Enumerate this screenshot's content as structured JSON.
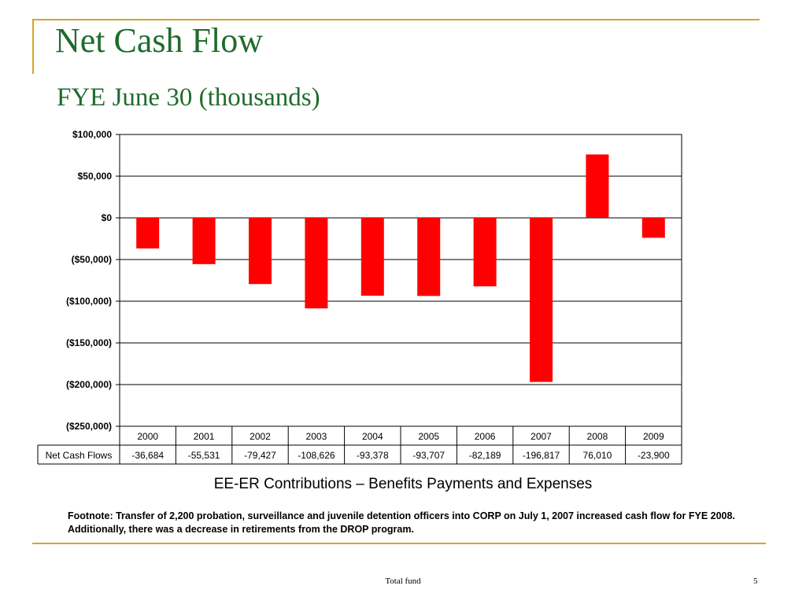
{
  "slide": {
    "title": "Net Cash Flow",
    "subtitle": "FYE June 30 (thousands)",
    "caption": "EE-ER Contributions – Benefits Payments and Expenses",
    "footnote": "Footnote: Transfer of 2,200 probation, surveillance and juvenile detention officers into CORP on July 1, 2007 increased cash flow for FYE 2008.  Additionally, there was a decrease in retirements from the DROP program.",
    "footer": "Total fund",
    "page_number": "5"
  },
  "chart_data": {
    "type": "bar",
    "categories": [
      "2000",
      "2001",
      "2002",
      "2003",
      "2004",
      "2005",
      "2006",
      "2007",
      "2008",
      "2009"
    ],
    "series": [
      {
        "name": "Net Cash Flows",
        "values": [
          -36684,
          -55531,
          -79427,
          -108626,
          -93378,
          -93707,
          -82189,
          -196817,
          76010,
          -23900
        ]
      }
    ],
    "table_values": [
      "-36,684",
      "-55,531",
      "-79,427",
      "-108,626",
      "-93,378",
      "-93,707",
      "-82,189",
      "-196,817",
      "76,010",
      "-23,900"
    ],
    "y_tick_labels": [
      "$100,000",
      "$50,000",
      "$0",
      "($50,000)",
      "($100,000)",
      "($150,000)",
      "($200,000)",
      "($250,000)"
    ],
    "y_ticks": [
      100000,
      50000,
      0,
      -50000,
      -100000,
      -150000,
      -200000,
      -250000
    ],
    "ylim": [
      -250000,
      100000
    ],
    "grid": true,
    "bar_color": "#ff0000"
  }
}
